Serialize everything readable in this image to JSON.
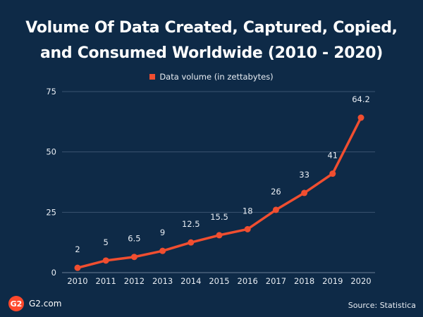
{
  "chart_data": {
    "type": "line",
    "title_lines": [
      "Volume Of Data Created, Captured, Copied,",
      "and Consumed Worldwide (2010 - 2020)"
    ],
    "categories": [
      "2010",
      "2011",
      "2012",
      "2013",
      "2014",
      "2015",
      "2016",
      "2017",
      "2018",
      "2019",
      "2020"
    ],
    "series": [
      {
        "name": "Data volume (in zettabytes)",
        "values": [
          2,
          5,
          6.5,
          9,
          12.5,
          15.5,
          18,
          26,
          33,
          41,
          64.2
        ],
        "labels": [
          "2",
          "5",
          "6.5",
          "9",
          "12.5",
          "15.5",
          "18",
          "26",
          "33",
          "41",
          "64.2"
        ],
        "color": "#f04e30"
      }
    ],
    "y_ticks": [
      "0",
      "25",
      "50",
      "75"
    ],
    "ylim": [
      0,
      75
    ],
    "legend_position": "top-center"
  },
  "branding": {
    "logo_mark": "G2",
    "logo_text": "G2.com"
  },
  "source_text": "Source: Statistica",
  "colors": {
    "background": "#0e2a47",
    "line": "#f04e30",
    "grid": "#3a5470",
    "text": "#ffffff"
  }
}
